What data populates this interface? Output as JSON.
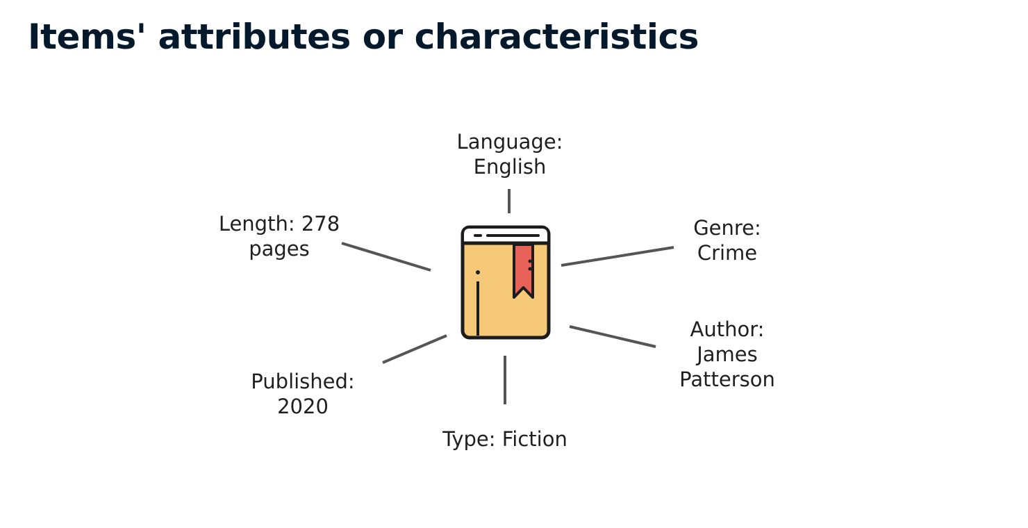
{
  "title": "Items' attributes or characteristics",
  "attributes": {
    "language": {
      "line1": "Language:",
      "line2": "English"
    },
    "genre": {
      "line1": "Genre:",
      "line2": "Crime"
    },
    "length": {
      "line1": "Length: 278",
      "line2": "pages"
    },
    "author": {
      "line1": "Author:",
      "line2": "James",
      "line3": "Patterson"
    },
    "published": {
      "line1": "Published:",
      "line2": "2020"
    },
    "type": {
      "line1": "Type: Fiction"
    }
  },
  "colors": {
    "title": "#05192d",
    "book_cover": "#f5c978",
    "book_outline": "#1c1c1c",
    "bookmark": "#e8625a",
    "connector": "#555555"
  },
  "icons": {
    "center": "book-icon"
  }
}
